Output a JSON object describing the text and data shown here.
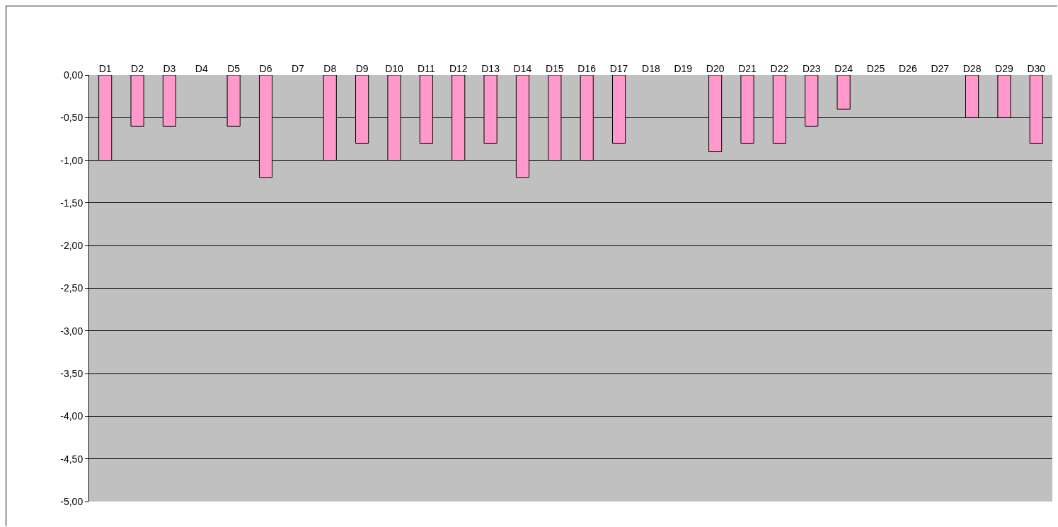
{
  "chart_data": {
    "type": "bar",
    "categories": [
      "D1",
      "D2",
      "D3",
      "D4",
      "D5",
      "D6",
      "D7",
      "D8",
      "D9",
      "D10",
      "D11",
      "D12",
      "D13",
      "D14",
      "D15",
      "D16",
      "D17",
      "D18",
      "D19",
      "D20",
      "D21",
      "D22",
      "D23",
      "D24",
      "D25",
      "D26",
      "D27",
      "D28",
      "D29",
      "D30"
    ],
    "values": [
      -1.0,
      -0.6,
      -0.6,
      null,
      -0.6,
      -1.2,
      null,
      -1.0,
      -0.8,
      -1.0,
      -0.8,
      -1.0,
      -0.8,
      -1.2,
      -1.0,
      -1.0,
      -0.8,
      null,
      null,
      -0.9,
      -0.8,
      -0.8,
      -0.6,
      -0.4,
      null,
      null,
      null,
      -0.5,
      -0.5,
      -0.8
    ],
    "color": "#ff99cc",
    "ylim": [
      -5,
      0
    ],
    "yticks": [
      {
        "value": 0,
        "label": "0,00"
      },
      {
        "value": -0.5,
        "label": "-0,50"
      },
      {
        "value": -1,
        "label": "-1,00"
      },
      {
        "value": -1.5,
        "label": "-1,50"
      },
      {
        "value": -2,
        "label": "-2,00"
      },
      {
        "value": -2.5,
        "label": "-2,50"
      },
      {
        "value": -3,
        "label": "-3,00"
      },
      {
        "value": -3.5,
        "label": "-3,50"
      },
      {
        "value": -4,
        "label": "-4,00"
      },
      {
        "value": -4.5,
        "label": "-4,50"
      },
      {
        "value": -5,
        "label": "-5,00"
      }
    ],
    "grid": "y"
  }
}
